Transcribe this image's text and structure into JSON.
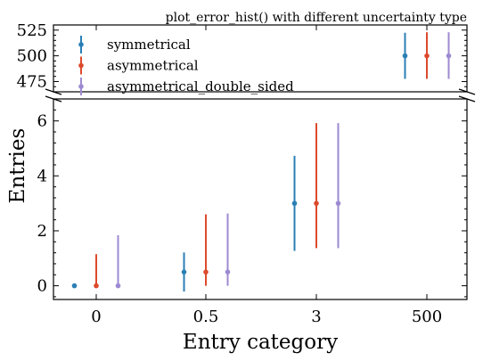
{
  "chart_data": {
    "type": "scatter",
    "title": "plot_error_hist() with different uncertainty type",
    "xlabel": "Entry category",
    "ylabel": "Entries",
    "categories": [
      "0",
      "0.5",
      "3",
      "500"
    ],
    "y_axis_break": true,
    "lower_ylim": [
      -0.5,
      6.8
    ],
    "upper_ylim": [
      465,
      530
    ],
    "lower_yticks": [
      "0",
      "2",
      "4",
      "6"
    ],
    "upper_yticks": [
      "475",
      "500",
      "525"
    ],
    "legend_position": "top-left",
    "series": [
      {
        "name": "symmetrical",
        "color": "#2a7fb5",
        "values": [
          0,
          0.5,
          3,
          500
        ],
        "err_low": [
          0,
          0.71,
          1.73,
          22.4
        ],
        "err_high": [
          0,
          0.71,
          1.73,
          22.4
        ]
      },
      {
        "name": "asymmetrical",
        "color": "#dd4a2c",
        "values": [
          0,
          0.5,
          3,
          500
        ],
        "err_low": [
          0,
          0.5,
          1.63,
          22.4
        ],
        "err_high": [
          1.15,
          2.1,
          2.92,
          22.9
        ]
      },
      {
        "name": "asymmetrical_double_sided",
        "color": "#9d8ad2",
        "values": [
          0,
          0.5,
          3,
          500
        ],
        "err_low": [
          0,
          0.5,
          1.63,
          22.4
        ],
        "err_high": [
          1.84,
          2.13,
          2.92,
          22.9
        ]
      }
    ]
  }
}
